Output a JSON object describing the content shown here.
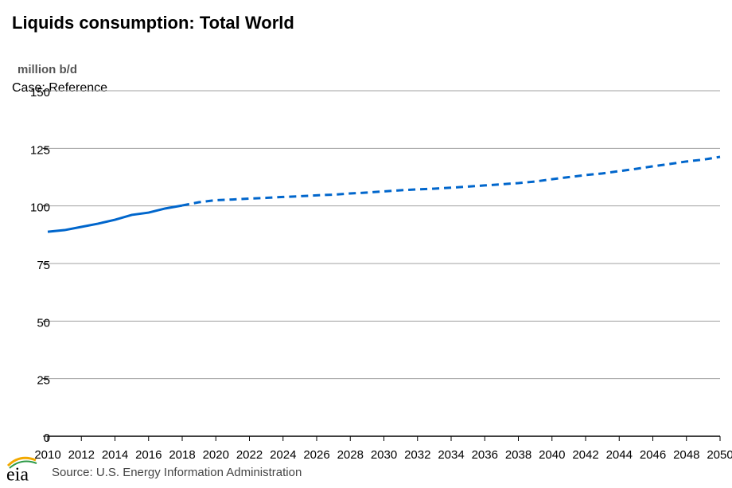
{
  "chart_data": {
    "type": "line",
    "title": "Liquids consumption: Total World",
    "y_label": "million b/d",
    "subtitle": "Case: Reference",
    "source": "Source: U.S. Energy Information Administration",
    "logo": "eia",
    "x": [
      2010,
      2011,
      2012,
      2013,
      2014,
      2015,
      2016,
      2017,
      2018,
      2019,
      2020,
      2021,
      2022,
      2023,
      2024,
      2025,
      2026,
      2027,
      2028,
      2029,
      2030,
      2031,
      2032,
      2033,
      2034,
      2035,
      2036,
      2037,
      2038,
      2039,
      2040,
      2041,
      2042,
      2043,
      2044,
      2045,
      2046,
      2047,
      2048,
      2049,
      2050
    ],
    "series": [
      {
        "color": "#0066cc",
        "values": [
          88.8,
          89.5,
          90.9,
          92.3,
          94.0,
          96.1,
          97.1,
          98.9,
          100.2,
          101.6,
          102.5,
          102.8,
          103.2,
          103.5,
          103.9,
          104.2,
          104.6,
          104.9,
          105.4,
          105.8,
          106.3,
          106.8,
          107.2,
          107.5,
          107.9,
          108.4,
          108.9,
          109.4,
          109.9,
          110.6,
          111.6,
          112.5,
          113.4,
          114.1,
          115.1,
          116.1,
          117.2,
          118.2,
          119.3,
          120.1,
          121.3
        ]
      }
    ],
    "dashed_from": 2018,
    "xlim": [
      2010,
      2050
    ],
    "xticks": [
      2010,
      2012,
      2014,
      2016,
      2018,
      2020,
      2022,
      2024,
      2026,
      2028,
      2030,
      2032,
      2034,
      2036,
      2038,
      2040,
      2042,
      2044,
      2046,
      2048,
      2050
    ],
    "ylim": [
      0,
      150
    ],
    "yticks": [
      0,
      25,
      50,
      75,
      100,
      125,
      150
    ],
    "grid": true
  }
}
